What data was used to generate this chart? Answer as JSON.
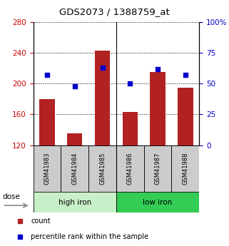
{
  "title": "GDS2073 / 1388759_at",
  "categories": [
    "GSM41983",
    "GSM41984",
    "GSM41985",
    "GSM41986",
    "GSM41987",
    "GSM41988"
  ],
  "bar_values": [
    180,
    135,
    243,
    163,
    215,
    195
  ],
  "bar_base": 120,
  "percentile_values": [
    57,
    48,
    63,
    50,
    62,
    57
  ],
  "left_ylim": [
    120,
    280
  ],
  "right_ylim": [
    0,
    100
  ],
  "left_yticks": [
    120,
    160,
    200,
    240,
    280
  ],
  "right_yticks": [
    0,
    25,
    50,
    75,
    100
  ],
  "right_yticklabels": [
    "0",
    "25",
    "50",
    "75",
    "100%"
  ],
  "bar_color": "#b22222",
  "dot_color": "#0000cd",
  "group_colors": [
    "#c8f0c8",
    "#33cc55"
  ],
  "dose_label": "dose",
  "legend_items": [
    {
      "label": "count",
      "color": "#b22222"
    },
    {
      "label": "percentile rank within the sample",
      "color": "#0000cd"
    }
  ],
  "left_tick_color": "#cc0000",
  "right_tick_color": "#0000cc",
  "tick_label_gray_bg": "#cccccc",
  "group_labels": [
    "high iron",
    "low iron"
  ]
}
